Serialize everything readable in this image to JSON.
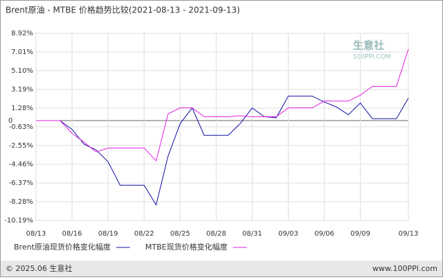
{
  "chart_data": {
    "type": "line",
    "title": "Brent原油 - MTBE 价格趋势比较(2021-08-13 - 2021-09-13)",
    "watermark": "生意社",
    "watermark_sub": "100PPI.COM",
    "footer_left": "© 2025.06 生意社",
    "footer_right": "www.100PPI.com",
    "categories": [
      "08/13",
      null,
      null,
      "08/16",
      null,
      null,
      "08/19",
      null,
      null,
      "08/22",
      null,
      null,
      "08/25",
      null,
      null,
      "08/28",
      null,
      null,
      "08/31",
      null,
      null,
      "09/03",
      null,
      null,
      "09/06",
      null,
      null,
      "09/09",
      null,
      null,
      null,
      "09/13"
    ],
    "series": [
      {
        "name": "Brent原油现货价格变化幅度",
        "color": "#1010a0",
        "values": [
          0,
          0,
          0,
          -0.9,
          -2.4,
          -3.0,
          -4.2,
          -6.6,
          -6.6,
          -6.6,
          -8.6,
          -3.6,
          -0.3,
          1.3,
          -1.5,
          -1.5,
          -1.5,
          -0.3,
          1.3,
          0.4,
          0.3,
          2.5,
          2.5,
          2.5,
          1.9,
          1.4,
          0.6,
          1.8,
          0.2,
          0.2,
          0.2,
          2.3
        ]
      },
      {
        "name": "MTBE现货价格变化幅度",
        "color": "#e020e0",
        "values": [
          0,
          0,
          0,
          -1.3,
          -2.2,
          -3.2,
          -2.8,
          -2.8,
          -2.8,
          -2.8,
          -4.1,
          0.7,
          1.3,
          1.3,
          0.4,
          0.4,
          0.4,
          0.5,
          0.4,
          0.4,
          0.4,
          1.3,
          1.3,
          1.3,
          2.0,
          2.0,
          2.0,
          2.6,
          3.5,
          3.5,
          3.5,
          7.3
        ]
      }
    ],
    "ylim": [
      -10.19,
      8.92
    ],
    "yticks": [
      {
        "value": 8.92,
        "label": "8.92%"
      },
      {
        "value": 7.01,
        "label": "7.01%"
      },
      {
        "value": 5.1,
        "label": "5.10%"
      },
      {
        "value": 3.19,
        "label": "3.19%"
      },
      {
        "value": 1.28,
        "label": "1.28%"
      },
      0,
      {
        "value": -0.63,
        "label": "-0.63%"
      },
      {
        "value": -2.55,
        "label": "-2.55%"
      },
      {
        "value": -4.46,
        "label": "-4.46%"
      },
      {
        "value": -6.37,
        "label": "-6.37%"
      },
      {
        "value": -8.28,
        "label": "-8.28%"
      },
      {
        "value": -10.19,
        "label": "-10.19%"
      }
    ],
    "grid": true
  }
}
